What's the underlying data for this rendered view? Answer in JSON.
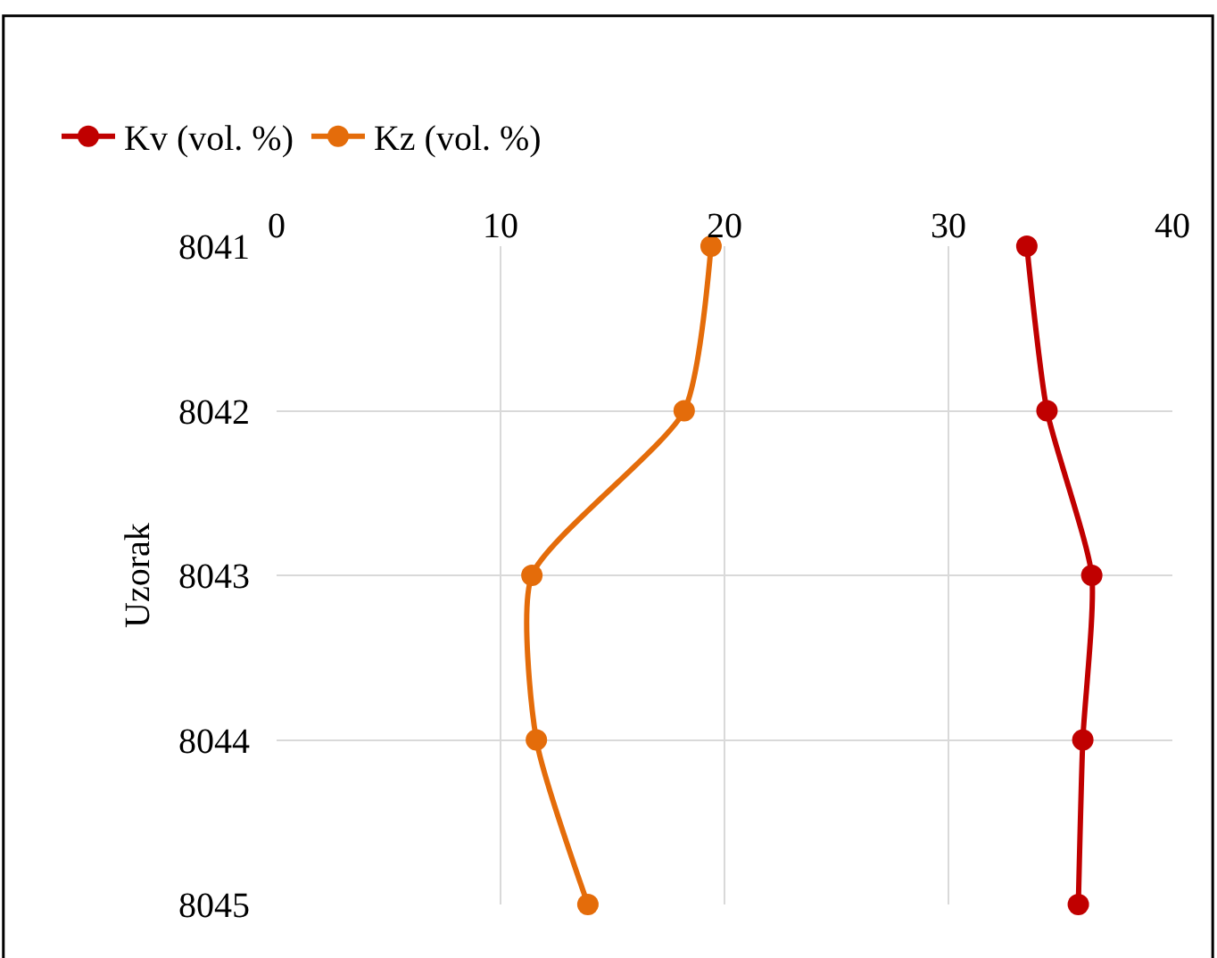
{
  "chart_data": {
    "type": "line",
    "orientation": "horizontal",
    "ylabel": "Uzorak",
    "categories": [
      "8041",
      "8042",
      "8043",
      "8044",
      "8045"
    ],
    "series": [
      {
        "name": "Kv (vol. %)",
        "color": "#c00000",
        "values": [
          33.5,
          34.4,
          36.4,
          36.0,
          35.8
        ]
      },
      {
        "name": "Kz (vol. %)",
        "color": "#e46c0a",
        "values": [
          19.4,
          18.2,
          11.4,
          11.6,
          13.9
        ]
      }
    ],
    "xlim": [
      0,
      40
    ],
    "xticks": [
      0,
      10,
      20,
      30,
      40
    ],
    "grid": true,
    "legend": "top left",
    "marker": "circle",
    "line_style": "solid"
  }
}
